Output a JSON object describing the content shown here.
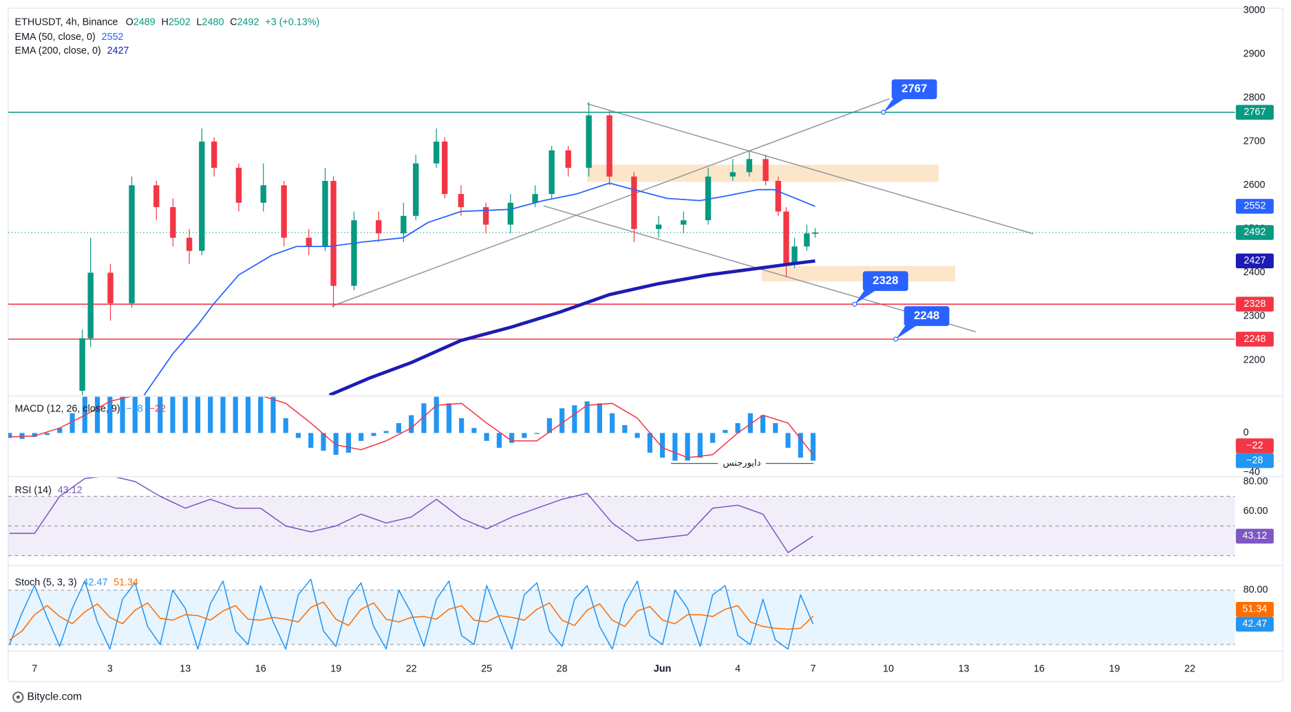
{
  "chart_data": [
    {
      "type": "candlestick",
      "title": "ETHUSDT, 4h, Binance",
      "ohlc_labels": [
        "O",
        "H",
        "L",
        "C"
      ],
      "ohlc_values": [
        2489,
        2502,
        2480,
        2492
      ],
      "change": "+3 (+0.13%)",
      "up_color": "#089981",
      "down_color": "#f23645",
      "x": [
        1.9,
        2.23,
        3.02,
        3.87,
        4.85,
        5.51,
        6.16,
        6.66,
        7.15,
        8.13,
        9.11,
        9.93,
        10.92,
        11.57,
        11.9,
        12.72,
        13.7,
        14.69,
        15.18,
        16,
        16.33,
        16.98,
        17.97,
        18.95,
        19.93,
        20.59,
        21.25,
        22.07,
        22.89,
        23.87,
        24.85,
        25.84,
        26.82,
        27.8,
        28.46,
        29.11,
        29.61,
        29.93,
        30.26,
        30.75,
        31.08
      ],
      "open": [
        2130,
        2250,
        2400,
        2330,
        2600,
        2550,
        2480,
        2450,
        2700,
        2640,
        2560,
        2600,
        2480,
        2460,
        2610,
        2370,
        2520,
        2490,
        2530,
        2650,
        2700,
        2580,
        2550,
        2510,
        2560,
        2580,
        2680,
        2640,
        2760,
        2620,
        2500,
        2510,
        2520,
        2620,
        2630,
        2660,
        2610,
        2540,
        2420,
        2460,
        2489
      ],
      "high": [
        2270,
        2480,
        2420,
        2620,
        2610,
        2570,
        2500,
        2730,
        2710,
        2650,
        2650,
        2610,
        2500,
        2640,
        2620,
        2540,
        2540,
        2560,
        2670,
        2730,
        2710,
        2600,
        2560,
        2580,
        2600,
        2690,
        2690,
        2790,
        2770,
        2630,
        2530,
        2540,
        2640,
        2660,
        2680,
        2670,
        2620,
        2550,
        2480,
        2510,
        2502
      ],
      "low": [
        2110,
        2230,
        2290,
        2320,
        2520,
        2460,
        2420,
        2440,
        2620,
        2540,
        2540,
        2460,
        2440,
        2450,
        2320,
        2360,
        2470,
        2470,
        2520,
        2640,
        2570,
        2530,
        2490,
        2490,
        2550,
        2570,
        2620,
        2620,
        2600,
        2470,
        2480,
        2490,
        2510,
        2610,
        2620,
        2600,
        2530,
        2390,
        2410,
        2450,
        2480
      ],
      "close": [
        2250,
        2400,
        2330,
        2600,
        2550,
        2480,
        2450,
        2700,
        2640,
        2560,
        2600,
        2480,
        2460,
        2610,
        2370,
        2520,
        2490,
        2530,
        2650,
        2700,
        2580,
        2550,
        2510,
        2560,
        2580,
        2680,
        2640,
        2760,
        2620,
        2500,
        2510,
        2520,
        2620,
        2630,
        2660,
        2610,
        2540,
        2420,
        2460,
        2490,
        2492
      ],
      "series": [
        {
          "name": "EMA (50, close, 0)",
          "color": "#2962ff",
          "width": 1.5,
          "x": [
            4.36,
            5.51,
            6.49,
            7.15,
            8.13,
            9.44,
            10.43,
            11.74,
            13.05,
            14.69,
            15.67,
            16.98,
            18.95,
            20.26,
            21.57,
            22.89,
            23.87,
            25.18,
            26.49,
            27.48,
            28.79,
            29.44,
            30.1,
            31.08
          ],
          "values": [
            2120,
            2215,
            2280,
            2330,
            2395,
            2440,
            2460,
            2460,
            2470,
            2480,
            2515,
            2540,
            2545,
            2565,
            2580,
            2605,
            2590,
            2570,
            2565,
            2575,
            2590,
            2590,
            2575,
            2552
          ]
        },
        {
          "name": "EMA (200, close, 0)",
          "color": "#1c1cb4",
          "width": 4,
          "x": [
            11.74,
            13.38,
            15.02,
            16.98,
            18.95,
            20.92,
            22.89,
            24.85,
            26.82,
            28.79,
            30.1,
            31.08
          ],
          "values": [
            2120,
            2160,
            2195,
            2245,
            2275,
            2310,
            2350,
            2375,
            2395,
            2410,
            2420,
            2427
          ]
        }
      ],
      "levels": [
        {
          "value": 2767,
          "color": "#089981"
        },
        {
          "value": 2328,
          "color": "#f23645"
        },
        {
          "value": 2248,
          "color": "#f23645"
        }
      ],
      "callout_color": "#2962ff",
      "ylim": [
        2120,
        3005
      ],
      "yticks": [
        3000,
        2900,
        2800,
        2700,
        2600,
        2500,
        2400,
        2300,
        2200
      ]
    },
    {
      "type": "macd",
      "title": "MACD (12, 26, close, 9)",
      "annotation": "دایورجنس",
      "x": [
        -1,
        -0.5,
        0,
        0.5,
        1,
        1.5,
        2,
        2.5,
        3,
        3.5,
        4,
        4.5,
        5,
        5.5,
        6,
        6.5,
        7,
        7.5,
        8,
        8.5,
        9,
        9.5,
        10,
        10.5,
        11,
        11.5,
        12,
        12.5,
        13,
        13.5,
        14,
        14.5,
        15,
        15.5,
        16,
        16.5,
        17,
        17.5,
        18,
        18.5,
        19,
        19.5,
        20,
        20.5,
        21,
        21.5,
        22,
        22.5,
        23,
        23.5,
        24,
        24.5,
        25,
        25.5,
        26,
        26.5,
        27,
        27.5,
        28,
        28.5,
        29,
        29.5,
        30,
        30.5,
        31
      ],
      "histogram": {
        "color": "#2196f3",
        "value_label": "−28",
        "values": [
          -5,
          -6,
          -4,
          -2,
          5,
          20,
          37,
          38,
          38,
          38,
          38,
          38,
          38,
          38,
          38,
          38,
          38,
          38,
          38,
          38,
          38,
          38,
          15,
          -5,
          -15,
          -18,
          -22,
          -20,
          -8,
          -3,
          2,
          10,
          18,
          30,
          37,
          30,
          15,
          5,
          -8,
          -15,
          -10,
          -5,
          -1,
          15,
          25,
          28,
          32,
          30,
          20,
          8,
          -5,
          -20,
          -25,
          -28,
          -28,
          -25,
          -10,
          3,
          10,
          20,
          18,
          10,
          -15,
          -25,
          -28
        ]
      },
      "signal": {
        "color": "#f23645",
        "value_label": "−22",
        "x": [
          -1,
          0,
          1,
          2,
          3,
          4,
          5,
          6,
          7,
          8,
          9,
          10,
          11,
          12,
          13,
          14,
          15,
          16,
          17,
          18,
          19,
          20,
          21,
          22,
          23,
          24,
          25,
          26,
          27,
          28,
          29,
          30,
          31
        ],
        "values": [
          -4,
          -3,
          5,
          18,
          32,
          38,
          38,
          38,
          38,
          38,
          38,
          30,
          10,
          -12,
          -17,
          -8,
          5,
          28,
          30,
          10,
          -8,
          -8,
          10,
          28,
          30,
          15,
          -15,
          -25,
          -22,
          0,
          18,
          10,
          -22
        ]
      },
      "ylim": [
        -43.3,
        36.7
      ],
      "yticks": [
        0,
        {
          "value": -40,
          "label": "−40"
        }
      ]
    },
    {
      "type": "line",
      "title": "RSI (14)",
      "band": [
        30,
        70
      ],
      "midline": 50,
      "band_color": "#7e57c2",
      "x": [
        -1,
        0,
        1,
        2,
        3,
        4,
        5,
        6,
        7,
        8,
        9,
        10,
        11,
        12,
        13,
        14,
        15,
        16,
        17,
        18,
        19,
        20,
        21,
        22,
        23,
        24,
        25,
        26,
        27,
        28,
        29,
        30,
        31
      ],
      "series": [
        {
          "color": "#7e57c2",
          "values": [
            45,
            45,
            70,
            82,
            84,
            80,
            70,
            62,
            68,
            62,
            62,
            50,
            46,
            50,
            58,
            52,
            56,
            68,
            55,
            48,
            56,
            62,
            68,
            72,
            52,
            40,
            42,
            44,
            62,
            64,
            58,
            32,
            43.12
          ]
        }
      ],
      "ylim": [
        23.9,
        82.8
      ],
      "yticks": [
        {
          "value": 80,
          "label": "80.00"
        },
        {
          "value": 60,
          "label": "60.00"
        }
      ]
    },
    {
      "type": "line",
      "title": "Stoch (5, 3, 3)",
      "band": [
        20,
        80
      ],
      "band_color": "#2196f3",
      "x": [
        -1,
        -0.5,
        0,
        0.5,
        1,
        1.5,
        2,
        2.5,
        3,
        3.5,
        4,
        4.5,
        5,
        5.5,
        6,
        6.5,
        7,
        7.5,
        8,
        8.5,
        9,
        9.5,
        10,
        10.5,
        11,
        11.5,
        12,
        12.5,
        13,
        13.5,
        14,
        14.5,
        15,
        15.5,
        16,
        16.5,
        17,
        17.5,
        18,
        18.5,
        19,
        19.5,
        20,
        20.5,
        21,
        21.5,
        22,
        22.5,
        23,
        23.5,
        24,
        24.5,
        25,
        25.5,
        26,
        26.5,
        27,
        27.5,
        28,
        28.5,
        29,
        29.5,
        30,
        30.5,
        31
      ],
      "series": [
        {
          "color": "#2196f3",
          "values": [
            20,
            55,
            85,
            50,
            18,
            60,
            90,
            45,
            15,
            70,
            88,
            40,
            20,
            80,
            60,
            15,
            65,
            90,
            35,
            20,
            85,
            45,
            15,
            75,
            92,
            35,
            18,
            70,
            88,
            40,
            15,
            80,
            55,
            18,
            70,
            90,
            30,
            20,
            85,
            50,
            15,
            75,
            88,
            35,
            18,
            70,
            85,
            40,
            15,
            65,
            90,
            30,
            20,
            80,
            60,
            18,
            75,
            85,
            30,
            20,
            70,
            25,
            15,
            75,
            42.47
          ]
        },
        {
          "color": "#ff6d00",
          "values": [
            25,
            35,
            53,
            63,
            51,
            43,
            56,
            65,
            50,
            43,
            58,
            66,
            49,
            47,
            53,
            52,
            47,
            57,
            63,
            48,
            47,
            50,
            48,
            45,
            61,
            67,
            48,
            41,
            59,
            66,
            48,
            45,
            50,
            51,
            48,
            59,
            63,
            47,
            45,
            52,
            50,
            47,
            59,
            66,
            47,
            41,
            58,
            65,
            47,
            40,
            57,
            62,
            47,
            43,
            53,
            53,
            51,
            59,
            63,
            45,
            40,
            38,
            37,
            38,
            51.34
          ]
        }
      ],
      "ylim": [
        13.7,
        106.4
      ],
      "yticks": [
        {
          "value": 80,
          "label": "80.00"
        }
      ],
      "xlim": [
        -1.05,
        47.8
      ],
      "xticks": [
        {
          "value": 0,
          "label": "7"
        },
        3,
        {
          "value": 6,
          "label": "13"
        },
        {
          "value": 9,
          "label": "16"
        },
        {
          "value": 12,
          "label": "19"
        },
        {
          "value": 15,
          "label": "22"
        },
        {
          "value": 18,
          "label": "25"
        },
        {
          "value": 21,
          "label": "28"
        },
        {
          "value": 25,
          "label": "Jun"
        },
        {
          "value": 28,
          "label": "4"
        },
        {
          "value": 31,
          "label": "7"
        },
        {
          "value": 34,
          "label": "10"
        },
        {
          "value": 37,
          "label": "13"
        },
        {
          "value": 40,
          "label": "16"
        },
        {
          "value": 43,
          "label": "19"
        },
        {
          "value": 46,
          "label": "22"
        }
      ]
    }
  ],
  "footer": {
    "brand": "Bitycle.com"
  }
}
